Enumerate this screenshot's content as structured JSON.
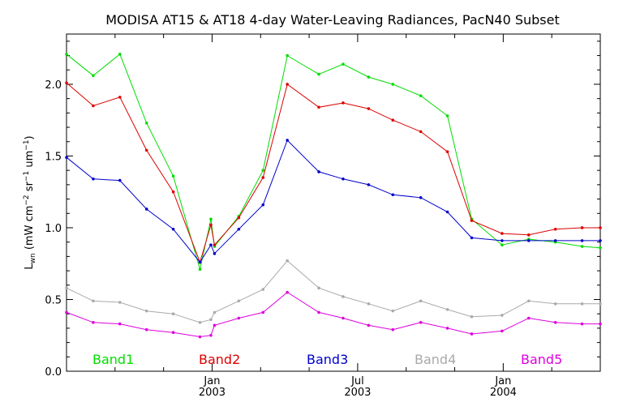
{
  "chart_data": {
    "type": "line",
    "title": "MODISA AT15 & AT18 4-day Water-Leaving Radiances, PacN40 Subset",
    "ylabel": "L_wn (mW cm^-2 sr^-1 um^-1)",
    "ylabel_parts": {
      "main": "L",
      "main_sub": "wn",
      "open": " (mW cm",
      "exp1": "−2",
      "mid": " sr",
      "exp2": "−1",
      "unit": " um",
      "exp3": "−1",
      "close": ")"
    },
    "xlabel": "",
    "x_unit": "months since Jul 2002",
    "xlim": [
      0.0,
      22.0
    ],
    "ylim": [
      0.0,
      2.35
    ],
    "y_ticks": [
      0.0,
      0.5,
      1.0,
      1.5,
      2.0
    ],
    "y_tick_labels": [
      "0.0",
      "0.5",
      "1.0",
      "1.5",
      "2.0"
    ],
    "x_major_ticks": [
      {
        "x": 6.0,
        "label": "Jan",
        "year": "2003"
      },
      {
        "x": 12.0,
        "label": "Jul",
        "year": "2003"
      },
      {
        "x": 18.0,
        "label": "Jan",
        "year": "2004"
      }
    ],
    "x_minor_ticks": [
      2.0,
      4.0,
      8.0,
      10.0,
      14.0,
      16.0,
      20.0
    ],
    "x": [
      0.0,
      1.1,
      2.2,
      3.3,
      4.4,
      5.5,
      5.95,
      6.1,
      7.1,
      8.1,
      9.1,
      10.4,
      11.4,
      12.45,
      13.45,
      14.6,
      15.7,
      16.7,
      17.95,
      19.05,
      20.15,
      21.25,
      22.0
    ],
    "series": [
      {
        "name": "Band1",
        "color": "#00dd00",
        "values": [
          2.21,
          2.06,
          2.21,
          1.73,
          1.36,
          0.71,
          1.06,
          0.87,
          1.08,
          1.4,
          2.2,
          2.07,
          2.14,
          2.05,
          2.0,
          1.92,
          1.78,
          1.06,
          0.88,
          0.92,
          0.9,
          0.87,
          0.86
        ]
      },
      {
        "name": "Band2",
        "color": "#dd0000",
        "values": [
          2.01,
          1.85,
          1.91,
          1.54,
          1.25,
          0.76,
          1.02,
          0.88,
          1.07,
          1.35,
          2.0,
          1.84,
          1.87,
          1.83,
          1.75,
          1.67,
          1.53,
          1.05,
          0.96,
          0.95,
          0.99,
          1.0,
          1.0
        ]
      },
      {
        "name": "Band3",
        "color": "#0000cc",
        "values": [
          1.49,
          1.34,
          1.33,
          1.13,
          0.99,
          0.76,
          0.88,
          0.82,
          0.99,
          1.16,
          1.61,
          1.39,
          1.34,
          1.3,
          1.23,
          1.21,
          1.11,
          0.93,
          0.91,
          0.91,
          0.91,
          0.91,
          0.91
        ]
      },
      {
        "name": "Band4",
        "color": "#aaaaaa",
        "values": [
          0.58,
          0.49,
          0.48,
          0.42,
          0.4,
          0.34,
          0.36,
          0.41,
          0.49,
          0.57,
          0.77,
          0.58,
          0.52,
          0.47,
          0.42,
          0.49,
          0.43,
          0.38,
          0.39,
          0.49,
          0.47,
          0.47,
          0.47
        ]
      },
      {
        "name": "Band5",
        "color": "#dd00dd",
        "values": [
          0.41,
          0.34,
          0.33,
          0.29,
          0.27,
          0.24,
          0.25,
          0.32,
          0.37,
          0.41,
          0.55,
          0.41,
          0.37,
          0.32,
          0.29,
          0.34,
          0.3,
          0.26,
          0.28,
          0.37,
          0.34,
          0.33,
          0.33
        ]
      }
    ],
    "legend_placement": "bottom-inside",
    "grid": false
  }
}
